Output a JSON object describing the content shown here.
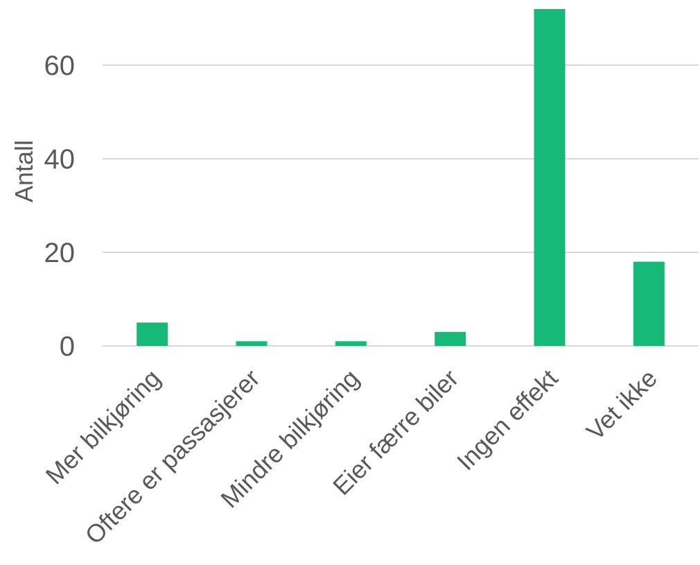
{
  "chart_data": {
    "type": "bar",
    "title": "",
    "xlabel": "",
    "ylabel": "Antall",
    "categories": [
      "Mer bilkjøring",
      "Oftere er passasjerer",
      "Mindre bilkjøring",
      "Eier færre biler",
      "Ingen effekt",
      "Vet ikke"
    ],
    "series": [
      {
        "values": [
          5,
          1,
          1,
          3,
          72,
          18
        ],
        "color": "#17b978"
      }
    ],
    "ylim": [
      0,
      72
    ],
    "yticks": [
      0,
      20,
      40,
      60
    ],
    "grid": true,
    "legend": "none"
  }
}
